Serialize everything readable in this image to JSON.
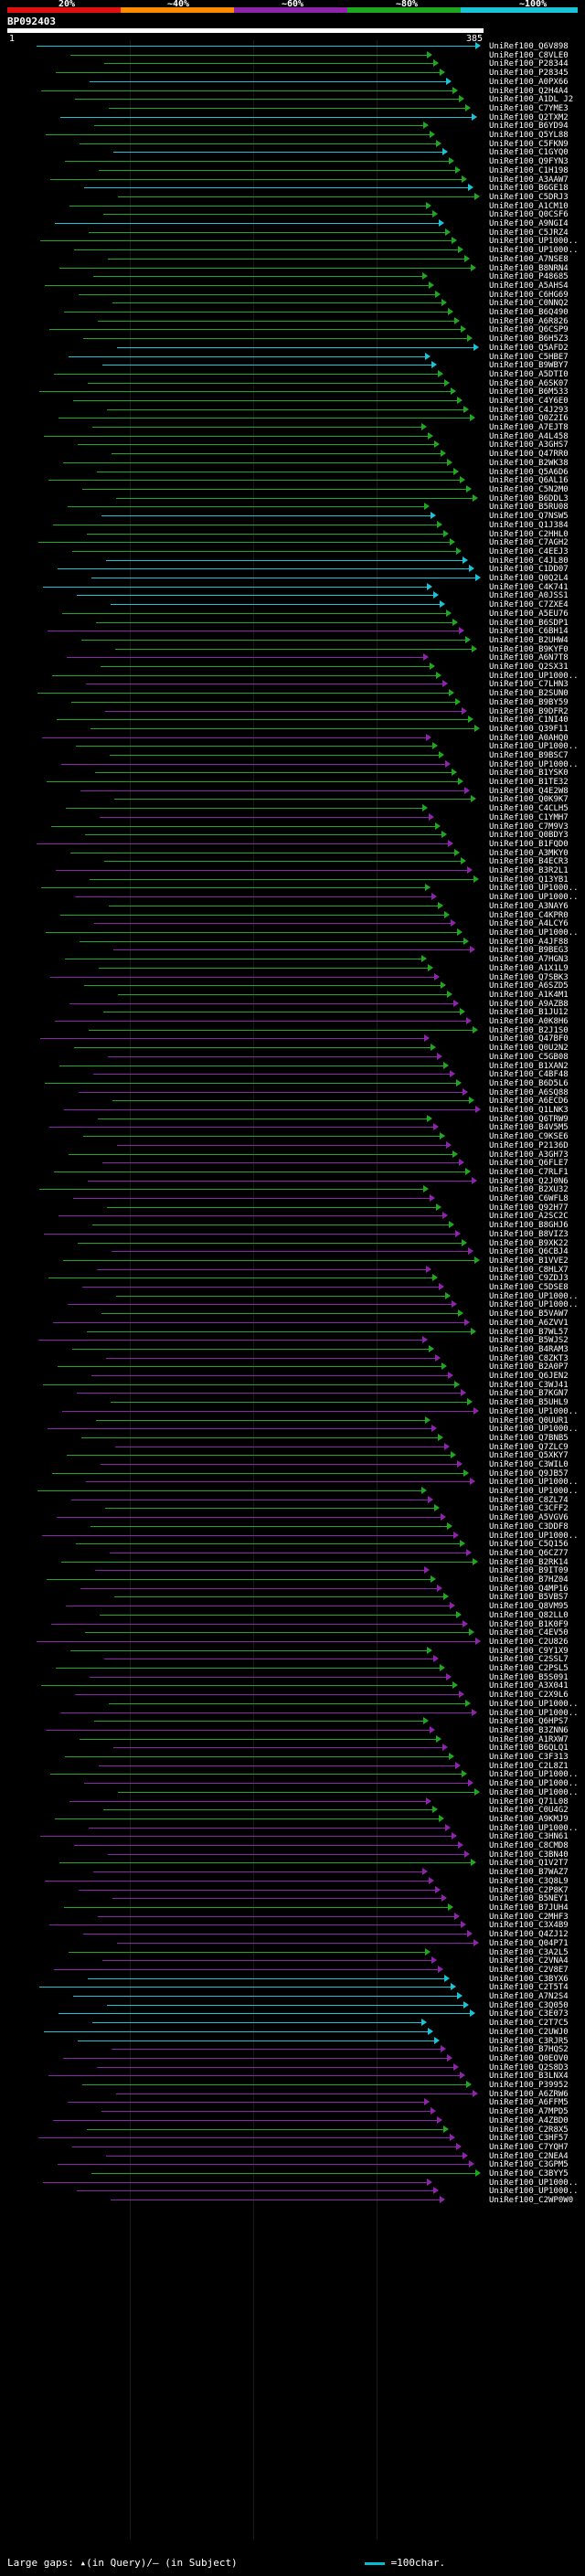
{
  "scale": {
    "labels": [
      "20%",
      "~40%",
      "~60%",
      "~80%",
      "~100%"
    ],
    "colors": [
      "#e01010",
      "#ff8c00",
      "#8e24aa",
      "#1fa81f",
      "#19c4d6"
    ]
  },
  "query": {
    "id": "BP092403",
    "start": "1",
    "end": "385"
  },
  "hits": [
    "UniRef100_Q6V898",
    "UniRef100_C8VLE0",
    "UniRef100_P28344",
    "UniRef100_P28345",
    "UniRef100_A0PX66",
    "UniRef100_Q2H4A4",
    "UniRef100_A1DL J2",
    "UniRef100_C7YME3",
    "UniRef100_Q2TXM2",
    "UniRef100_B6YD94",
    "UniRef100_Q5YL88",
    "UniRef100_C5FKN9",
    "UniRef100_C1GYQ0",
    "UniRef100_Q9FYN3",
    "UniRef100_C1H198",
    "UniRef100_A3AAW7",
    "UniRef100_B6GE18",
    "UniRef100_C5DRJ3",
    "UniRef100_A1CM10",
    "UniRef100_Q0CSF6",
    "UniRef100_A9NGI4",
    "UniRef100_C5JRZ4",
    "UniRef100_UP1000..",
    "UniRef100_UP1000..",
    "UniRef100_A7NSE8",
    "UniRef100_B8NRN4",
    "UniRef100_P48685",
    "UniRef100_A5AHS4",
    "UniRef100_C6HG69",
    "UniRef100_C0NNQ2",
    "UniRef100_B6Q490",
    "UniRef100_A6R826",
    "UniRef100_Q6CSP9",
    "UniRef100_B6H5Z3",
    "UniRef100_Q5AFD2",
    "UniRef100_C5HBE7",
    "UniRef100_B9WBY7",
    "UniRef100_A5DTI0",
    "UniRef100_A6SK07",
    "UniRef100_B6M533",
    "UniRef100_C4Y6E0",
    "UniRef100_C4J293",
    "UniRef100_Q0Z2I6",
    "UniRef100_A7EJT8",
    "UniRef100_A4L458",
    "UniRef100_A3GHS7",
    "UniRef100_Q47RR0",
    "UniRef100_B2WK38",
    "UniRef100_Q5A6D6",
    "UniRef100_Q6AL16",
    "UniRef100_C5N2M0",
    "UniRef100_B6DDL3",
    "UniRef100_B5RU08",
    "UniRef100_Q7NSW5",
    "UniRef100_Q1J384",
    "UniRef100_C2HHL0",
    "UniRef100_C7AGH2",
    "UniRef100_C4EEJ3",
    "UniRef100_C4JL80",
    "UniRef100_C1DD07",
    "UniRef100_Q0Q2L4",
    "UniRef100_C4K741",
    "UniRef100_A0JSS1",
    "UniRef100_C7ZXE4",
    "UniRef100_A5EU76",
    "UniRef100_B6SDP1",
    "UniRef100_C6BH14",
    "UniRef100_B2UHW4",
    "UniRef100_B9KYF0",
    "UniRef100_A6N7T8",
    "UniRef100_Q2SX31",
    "UniRef100_UP1000..",
    "UniRef100_C7LHN3",
    "UniRef100_B2SUN0",
    "UniRef100_B9BY59",
    "UniRef100_B9DFR2",
    "UniRef100_C1NI40",
    "UniRef100_Q39F11",
    "UniRef100_A0AHQ0",
    "UniRef100_UP1000..",
    "UniRef100_B9BSC7",
    "UniRef100_UP1000..",
    "UniRef100_B1YSK0",
    "UniRef100_B1TE32",
    "UniRef100_Q4E2W8",
    "UniRef100_Q0K9K7",
    "UniRef100_C4CLH5",
    "UniRef100_C1YMH7",
    "UniRef100_C7M9V3",
    "UniRef100_Q0BDY3",
    "UniRef100_B1FQD0",
    "UniRef100_A3MKY0",
    "UniRef100_B4ECR3",
    "UniRef100_B3R2L1",
    "UniRef100_Q13YB1",
    "UniRef100_UP1000..",
    "UniRef100_UP1000..",
    "UniRef100_A3NAY6",
    "UniRef100_C4KPR0",
    "UniRef100_A4LCY6",
    "UniRef100_UP1000..",
    "UniRef100_A4JF88",
    "UniRef100_B9BEG3",
    "UniRef100_A7HGN3",
    "UniRef100_A1X1L9",
    "UniRef100_Q7SBK3",
    "UniRef100_A6SZD5",
    "UniRef100_A1K4M1",
    "UniRef100_A9AZB8",
    "UniRef100_B1JU12",
    "UniRef100_A0K8H6",
    "UniRef100_B2J1S0",
    "UniRef100_Q47BF0",
    "UniRef100_Q0U2N2",
    "UniRef100_C5GB08",
    "UniRef100_B1XAN2",
    "UniRef100_C4BF48",
    "UniRef100_B6D5L6",
    "UniRef100_A6SQ88",
    "UniRef100_A6ECD6",
    "UniRef100_Q1LNK3",
    "UniRef100_Q6TRW9",
    "UniRef100_B4V5M5",
    "UniRef100_C9KSE6",
    "UniRef100_P2136D",
    "UniRef100_A3GH73",
    "UniRef100_Q6FLE7",
    "UniRef100_C7RLF1",
    "UniRef100_Q2J0N6",
    "UniRef100_B2XU32",
    "UniRef100_C6WFL8",
    "UniRef100_Q92H77",
    "UniRef100_A2SC2C",
    "UniRef100_B8GHJ6",
    "UniRef100_B8VIZ3",
    "UniRef100_B9XK22",
    "UniRef100_Q6CBJ4",
    "UniRef100_B1VVE2",
    "UniRef100_C8HLX7",
    "UniRef100_C9ZDJ3",
    "UniRef100_C5DSE8",
    "UniRef100_UP1000..",
    "UniRef100_UP1000..",
    "UniRef100_B5VAW7",
    "UniRef100_A6ZVV1",
    "UniRef100_B7WL57",
    "UniRef100_B5WJS2",
    "UniRef100_B4RAM3",
    "UniRef100_C8ZKT3",
    "UniRef100_B2A0P7",
    "UniRef100_Q6JEN2",
    "UniRef100_C3WJ41",
    "UniRef100_B7KGN7",
    "UniRef100_B5UHL9",
    "UniRef100_UP1000..",
    "UniRef100_Q0UUR1",
    "UniRef100_UP1000..",
    "UniRef100_Q7BNB5",
    "UniRef100_Q7ZLC9",
    "UniRef100_Q5XKY7",
    "UniRef100_C3WIL0",
    "UniRef100_Q9JB57",
    "UniRef100_UP1000..",
    "UniRef100_UP1000..",
    "UniRef100_C8ZL74",
    "UniRef100_C3CFF2",
    "UniRef100_A5VGV6",
    "UniRef100_C3DDF8",
    "UniRef100_UP1000..",
    "UniRef100_C5Q156",
    "UniRef100_Q6CZ77",
    "UniRef100_B2RK14",
    "UniRef100_B9IT09",
    "UniRef100_B7HZ04",
    "UniRef100_Q4MP16",
    "UniRef100_B5VBS7",
    "UniRef100_Q8VM95",
    "UniRef100_Q82LL0",
    "UniRef100_B1K0F9",
    "UniRef100_C4EV50",
    "UniRef100_C2U826",
    "UniRef100_C9Y1X9",
    "UniRef100_C2SSL7",
    "UniRef100_C2PSL5",
    "UniRef100_B5S091",
    "UniRef100_A3X041",
    "UniRef100_C2X9L6",
    "UniRef100_UP1000..",
    "UniRef100_UP1000..",
    "UniRef100_Q6HPS7",
    "UniRef100_B3ZNN6",
    "UniRef100_A1RXW7",
    "UniRef100_B6QLQ1",
    "UniRef100_C3F313",
    "UniRef100_C2L8Z1",
    "UniRef100_UP1000..",
    "UniRef100_UP1000..",
    "UniRef100_UP1000..",
    "UniRef100_Q71L08",
    "UniRef100_C0U4G2",
    "UniRef100_A9KMJ9",
    "UniRef100_UP1000..",
    "UniRef100_C3HN61",
    "UniRef100_C8CMD8",
    "UniRef100_C3BN40",
    "UniRef100_Q1V2T7",
    "UniRef100_B7WAZ7",
    "UniRef100_C3Q8L9",
    "UniRef100_C2P8K7",
    "UniRef100_B5NEY1",
    "UniRef100_B7JUH4",
    "UniRef100_C2MHF3",
    "UniRef100_C3X4B9",
    "UniRef100_Q4ZJ12",
    "UniRef100_Q04P71",
    "UniRef100_C3A2L5",
    "UniRef100_C2VNA4",
    "UniRef100_C2V8E7",
    "UniRef100_C3BYX6",
    "UniRef100_C2T5T4",
    "UniRef100_A7N2S4",
    "UniRef100_C3Q050",
    "UniRef100_C3E073",
    "UniRef100_C2T7C5",
    "UniRef100_C2UWJ0",
    "UniRef100_C3RJR5",
    "UniRef100_B7HQS2",
    "UniRef100_Q0EOV0",
    "UniRef100_Q2S8D3",
    "UniRef100_B3LNX4",
    "UniRef100_P39952",
    "UniRef100_A6ZRW6",
    "UniRef100_A6FFM5",
    "UniRef100_A7MPD5",
    "UniRef100_A4ZBD0",
    "UniRef100_C2R8X5",
    "UniRef100_C3HF57",
    "UniRef100_C7YQH7",
    "UniRef100_C2NEA4",
    "UniRef100_C3GPM5",
    "UniRef100_C3BYY5",
    "UniRef100_UP1000..",
    "UniRef100_UP1000..",
    "UniRef100_C2WP0W0"
  ],
  "legend": {
    "large_gaps": "Large gaps:",
    "query_gap": "▴(in Query)/",
    "subject_gap": "– (in Subject)",
    "scale_note": "=100char."
  }
}
